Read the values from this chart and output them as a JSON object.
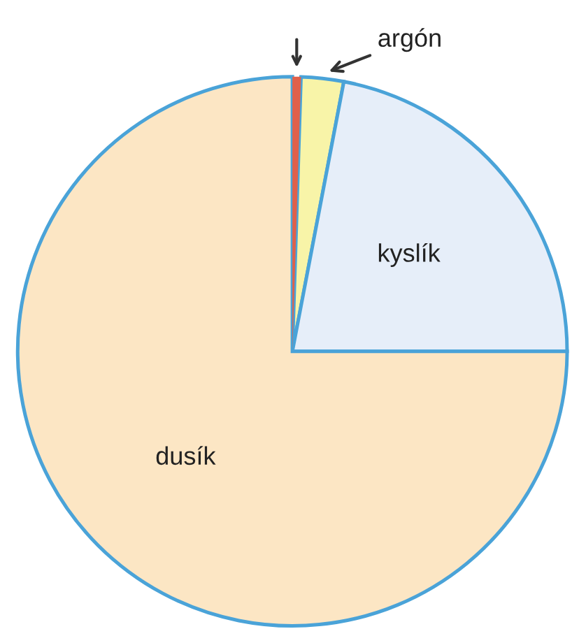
{
  "chart_data": {
    "type": "pie",
    "categories": [
      null,
      "argón",
      "kyslík",
      "dusík"
    ],
    "values": [
      0.5,
      2.5,
      22,
      75
    ],
    "colors": [
      "#e0604a",
      "#f8f4a8",
      "#e6eef9",
      "#fce6c4"
    ],
    "legend": false
  }
}
